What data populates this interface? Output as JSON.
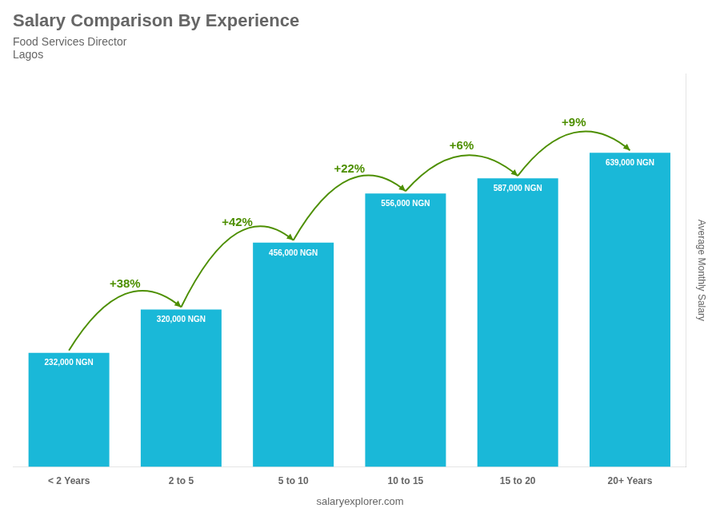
{
  "chart_data": {
    "type": "bar",
    "title": "Salary Comparison By Experience",
    "subtitle": [
      "Food Services Director",
      "Lagos"
    ],
    "ylabel": "Average Monthly Salary",
    "footer": "salaryexplorer.com",
    "categories": [
      "< 2 Years",
      "2 to 5",
      "5 to 10",
      "10 to 15",
      "15 to 20",
      "20+ Years"
    ],
    "values": [
      232000,
      320000,
      456000,
      556000,
      587000,
      639000
    ],
    "value_labels": [
      "232,000 NGN",
      "320,000 NGN",
      "456,000 NGN",
      "556,000 NGN",
      "587,000 NGN",
      "639,000 NGN"
    ],
    "data_labels": true,
    "annotations": [
      "+38%",
      "+42%",
      "+22%",
      "+6%",
      "+9%"
    ],
    "color": "#1ab8d8",
    "ylim": [
      0,
      800000
    ],
    "grid": false,
    "tick_labels": "x"
  }
}
